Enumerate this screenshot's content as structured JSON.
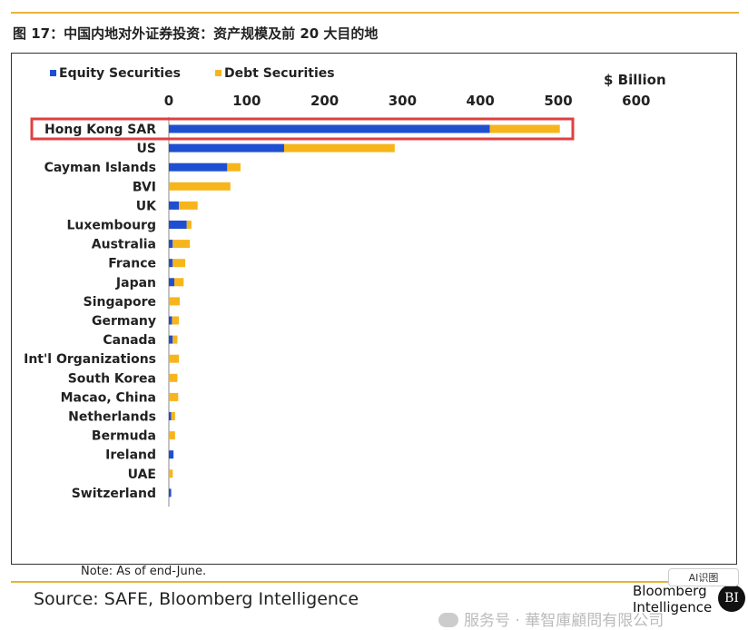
{
  "figure_title": "图 17：中国内地对外证券投资：资产规模及前 20 大目的地",
  "chart_data": {
    "type": "bar",
    "orientation": "horizontal",
    "stacked": true,
    "categories": [
      "Hong Kong SAR",
      "US",
      "Cayman Islands",
      "BVI",
      "UK",
      "Luxembourg",
      "Australia",
      "France",
      "Japan",
      "Singapore",
      "Germany",
      "Canada",
      "Int'l Organizations",
      "South Korea",
      "Macao, China",
      "Netherlands",
      "Bermuda",
      "Ireland",
      "UAE",
      "Switzerland"
    ],
    "series": [
      {
        "name": "Equity Securities",
        "color": "#1f4fd1",
        "values": [
          412,
          148,
          75,
          0,
          13,
          23,
          5,
          5,
          7,
          0,
          4,
          5,
          0,
          0,
          0,
          3,
          0,
          6,
          0,
          3
        ]
      },
      {
        "name": "Debt Securities",
        "color": "#f7b51c",
        "values": [
          90,
          142,
          17,
          79,
          24,
          6,
          22,
          16,
          12,
          14,
          9,
          6,
          13,
          11,
          12,
          5,
          8,
          0,
          5,
          0
        ]
      }
    ],
    "unit_label": "$ Billion",
    "xlim": [
      0,
      600
    ],
    "xticks": [
      "0",
      "100",
      "200",
      "300",
      "400",
      "500",
      "600"
    ],
    "xaxis_position": "top",
    "legend_position": "top-left",
    "highlight_category": "Hong Kong SAR",
    "highlight_color": "#e04040",
    "grid": false
  },
  "note": "Note: As of end-June.",
  "source": "Source: SAFE, Bloomberg Intelligence",
  "logo": {
    "line1": "Bloomberg",
    "line2": "Intelligence",
    "badge": "BI"
  },
  "watermark": "服务号 · 華智庫顧問有限公司",
  "ai_button": "AI识图"
}
